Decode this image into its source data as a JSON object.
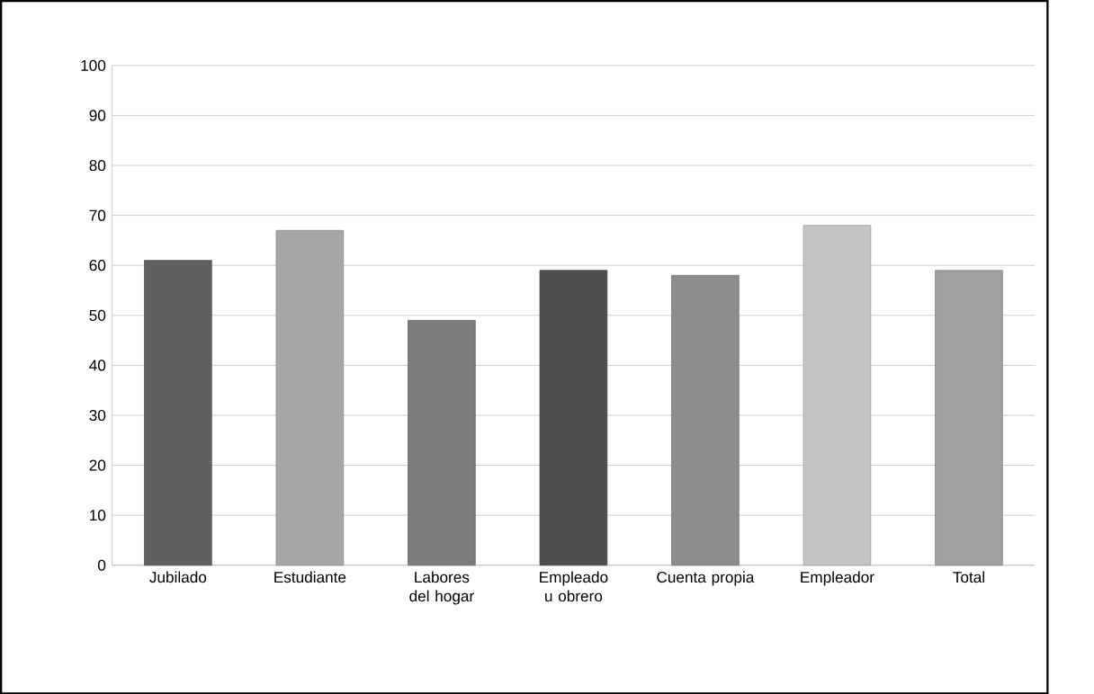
{
  "chart_data": {
    "type": "bar",
    "categories": [
      "Jubilado",
      "Estudiante",
      "Labores del hogar",
      "Empleado u obrero",
      "Cuenta propia",
      "Empleador",
      "Total"
    ],
    "values": [
      61,
      67,
      49,
      59,
      58,
      68,
      59
    ],
    "colors": [
      "#606060",
      "#a6a6a6",
      "#7c7c7c",
      "#4f4f4f",
      "#8c8c8c",
      "#c4c4c4",
      "#a0a0a0"
    ],
    "ylim": [
      0,
      100
    ],
    "yticks": [
      0,
      10,
      20,
      30,
      40,
      50,
      60,
      70,
      80,
      90,
      100
    ],
    "grid": "y"
  }
}
